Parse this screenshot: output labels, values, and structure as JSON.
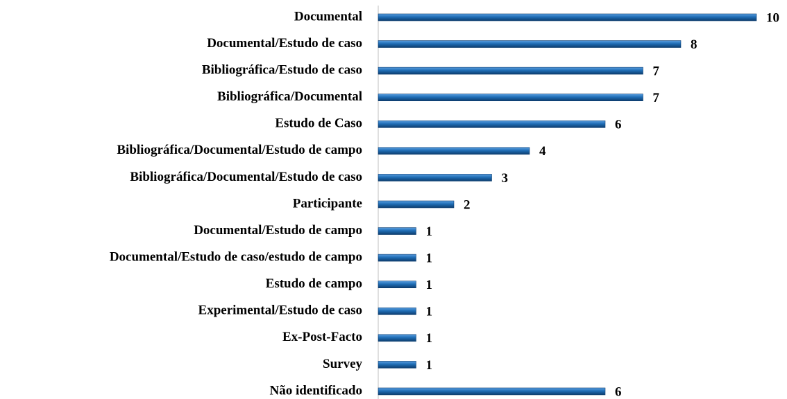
{
  "chart_data": {
    "type": "barh",
    "categories": [
      "Documental",
      "Documental/Estudo de caso",
      "Bibliográfica/Estudo de caso",
      "Bibliográfica/Documental",
      "Estudo de Caso",
      "Bibliográfica/Documental/Estudo de campo",
      "Bibliográfica/Documental/Estudo de caso",
      "Participante",
      "Documental/Estudo de campo",
      "Documental/Estudo de caso/estudo de campo",
      "Estudo de campo",
      "Experimental/Estudo de caso",
      "Ex-Post-Facto",
      "Survey",
      "Não identificado"
    ],
    "values": [
      10,
      8,
      7,
      7,
      6,
      4,
      3,
      2,
      1,
      1,
      1,
      1,
      1,
      1,
      6
    ],
    "color": "#1f6db5",
    "xlim": [
      0,
      10
    ]
  }
}
